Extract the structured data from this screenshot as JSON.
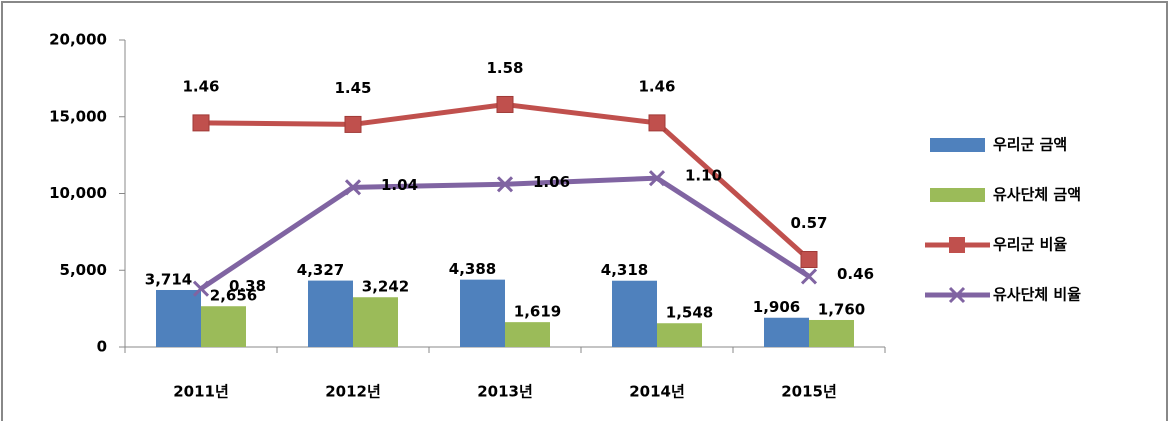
{
  "chart_data": {
    "type": "bar_line",
    "categories": [
      "2011년",
      "2012년",
      "2013년",
      "2014년",
      "2015년"
    ],
    "series": [
      {
        "name": "우리군 금액",
        "color": "#4f81bd",
        "kind": "bar",
        "values": [
          3714,
          4327,
          4388,
          4318,
          1906
        ],
        "value_labels": [
          "3,714",
          "4,327",
          "4,388",
          "4,318",
          "1,906"
        ]
      },
      {
        "name": "유사단체 금액",
        "color": "#9bbb59",
        "kind": "bar",
        "values": [
          2656,
          3242,
          1619,
          1548,
          1760
        ],
        "value_labels": [
          "2,656",
          "3,242",
          "1,619",
          "1,548",
          "1,760"
        ]
      },
      {
        "name": "우리군 비율",
        "color": "#c0504d",
        "kind": "line",
        "marker": "square",
        "axis": "y2",
        "values": [
          1.46,
          1.45,
          1.58,
          1.46,
          0.57
        ]
      },
      {
        "name": "유사단체 비율",
        "color": "#8064a2",
        "kind": "line",
        "marker": "x",
        "axis": "y2",
        "values": [
          0.38,
          1.04,
          1.06,
          1.1,
          0.46
        ],
        "value_labels": [
          "0.38",
          "1.04",
          "1.06",
          "1.10",
          "0.46"
        ]
      }
    ],
    "ylim": [
      0,
      20000
    ],
    "yticks": [
      0,
      {
        "value": 5000,
        "label": "5,000"
      },
      {
        "value": 10000,
        "label": "10,000"
      },
      {
        "value": 15000,
        "label": "15,000"
      },
      {
        "value": 20000,
        "label": "20,000"
      }
    ],
    "y2lim": [
      0,
      2
    ],
    "legend": "right"
  }
}
